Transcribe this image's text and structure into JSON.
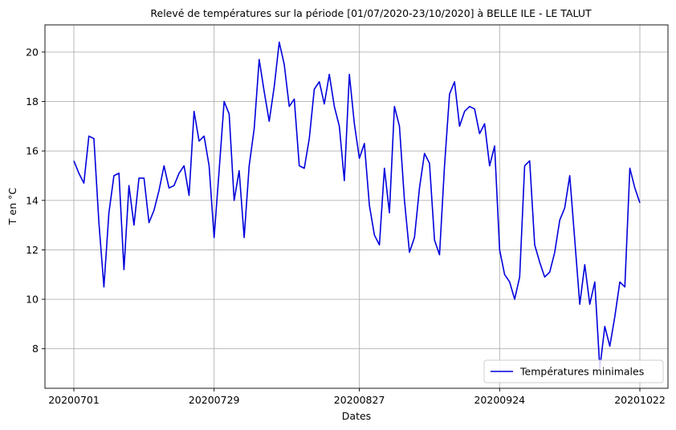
{
  "chart_data": {
    "type": "line",
    "title": "Relevé de températures sur la période [01/07/2020-23/10/2020] à BELLE ILE - LE TALUT",
    "xlabel": "Dates",
    "ylabel": "T en °C",
    "ylim": [
      6.4,
      21.1
    ],
    "yticks": [
      8,
      10,
      12,
      14,
      16,
      18,
      20
    ],
    "x_tick_labels": [
      "20200701",
      "20200729",
      "20200827",
      "20200924",
      "20201022"
    ],
    "x_tick_index": [
      0,
      28,
      57,
      85,
      113
    ],
    "grid": true,
    "legend_position": "lower-right",
    "series": [
      {
        "name": "Températures minimales",
        "color": "#0000dd",
        "values": [
          15.6,
          15.1,
          14.7,
          16.6,
          16.5,
          13.1,
          10.5,
          13.5,
          15.0,
          15.1,
          11.2,
          14.6,
          13.0,
          14.9,
          14.9,
          13.1,
          13.6,
          14.4,
          15.4,
          14.5,
          14.6,
          15.1,
          15.4,
          14.2,
          17.6,
          16.4,
          16.6,
          15.4,
          12.5,
          15.2,
          18.0,
          17.5,
          14.0,
          15.2,
          12.5,
          15.4,
          16.9,
          19.7,
          18.4,
          17.2,
          18.6,
          20.4,
          19.5,
          17.8,
          18.1,
          15.4,
          15.3,
          16.5,
          18.5,
          18.8,
          17.9,
          19.1,
          17.8,
          17.0,
          14.8,
          19.1,
          17.1,
          15.7,
          16.3,
          13.8,
          12.6,
          12.2,
          15.3,
          13.5,
          17.8,
          17.0,
          14.0,
          11.9,
          12.5,
          14.5,
          15.9,
          15.5,
          12.4,
          11.8,
          15.4,
          18.3,
          18.8,
          17.0,
          17.6,
          17.8,
          17.7,
          16.7,
          17.1,
          15.4,
          16.2,
          12.0,
          11.0,
          10.7,
          10.0,
          10.9,
          15.4,
          15.6,
          12.2,
          11.5,
          10.9,
          11.1,
          11.9,
          13.2,
          13.7,
          15.0,
          12.4,
          9.8,
          11.4,
          9.8,
          10.7,
          7.2,
          8.9,
          8.1,
          9.3,
          10.7,
          10.5,
          15.3,
          14.5,
          13.9
        ]
      }
    ]
  }
}
